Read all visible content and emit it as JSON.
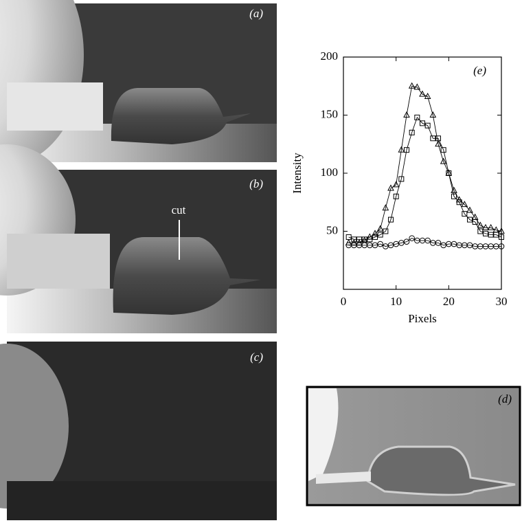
{
  "panels": [
    {
      "label": "(a)"
    },
    {
      "label": "(b)"
    },
    {
      "label": "(c)"
    },
    {
      "label": "(d)"
    }
  ],
  "annotation": "cut",
  "chart_data": {
    "type": "line",
    "title": "(e)",
    "x_label": "Pixels",
    "y_label": "Intensity",
    "xlim": [
      0,
      30
    ],
    "ylim": [
      0,
      200
    ],
    "xticks": [
      0,
      10,
      20,
      30
    ],
    "yticks": [
      50,
      100,
      150,
      200
    ],
    "grid": false,
    "x": [
      1,
      2,
      3,
      4,
      5,
      6,
      7,
      8,
      9,
      10,
      11,
      12,
      13,
      14,
      15,
      16,
      17,
      18,
      19,
      20,
      21,
      22,
      23,
      24,
      25,
      26,
      27,
      28,
      29,
      30
    ],
    "series": [
      {
        "color": "#000000",
        "marker": "triangle",
        "values": [
          40,
          40,
          40,
          42,
          45,
          48,
          52,
          70,
          87,
          90,
          120,
          150,
          175,
          174,
          168,
          166,
          150,
          125,
          110,
          100,
          85,
          77,
          73,
          68,
          62,
          55,
          53,
          53,
          51,
          50
        ]
      },
      {
        "color": "#000000",
        "marker": "square",
        "values": [
          45,
          43,
          43,
          43,
          43,
          45,
          47,
          50,
          60,
          80,
          95,
          120,
          135,
          148,
          143,
          141,
          130,
          130,
          120,
          100,
          80,
          75,
          65,
          60,
          58,
          50,
          48,
          47,
          47,
          45
        ]
      },
      {
        "color": "#000000",
        "marker": "circle",
        "values": [
          38,
          38,
          38,
          38,
          38,
          38,
          39,
          37,
          38,
          39,
          40,
          41,
          44,
          42,
          42,
          42,
          40,
          40,
          38,
          39,
          39,
          38,
          38,
          38,
          37,
          37,
          37,
          37,
          37,
          37
        ]
      }
    ]
  }
}
